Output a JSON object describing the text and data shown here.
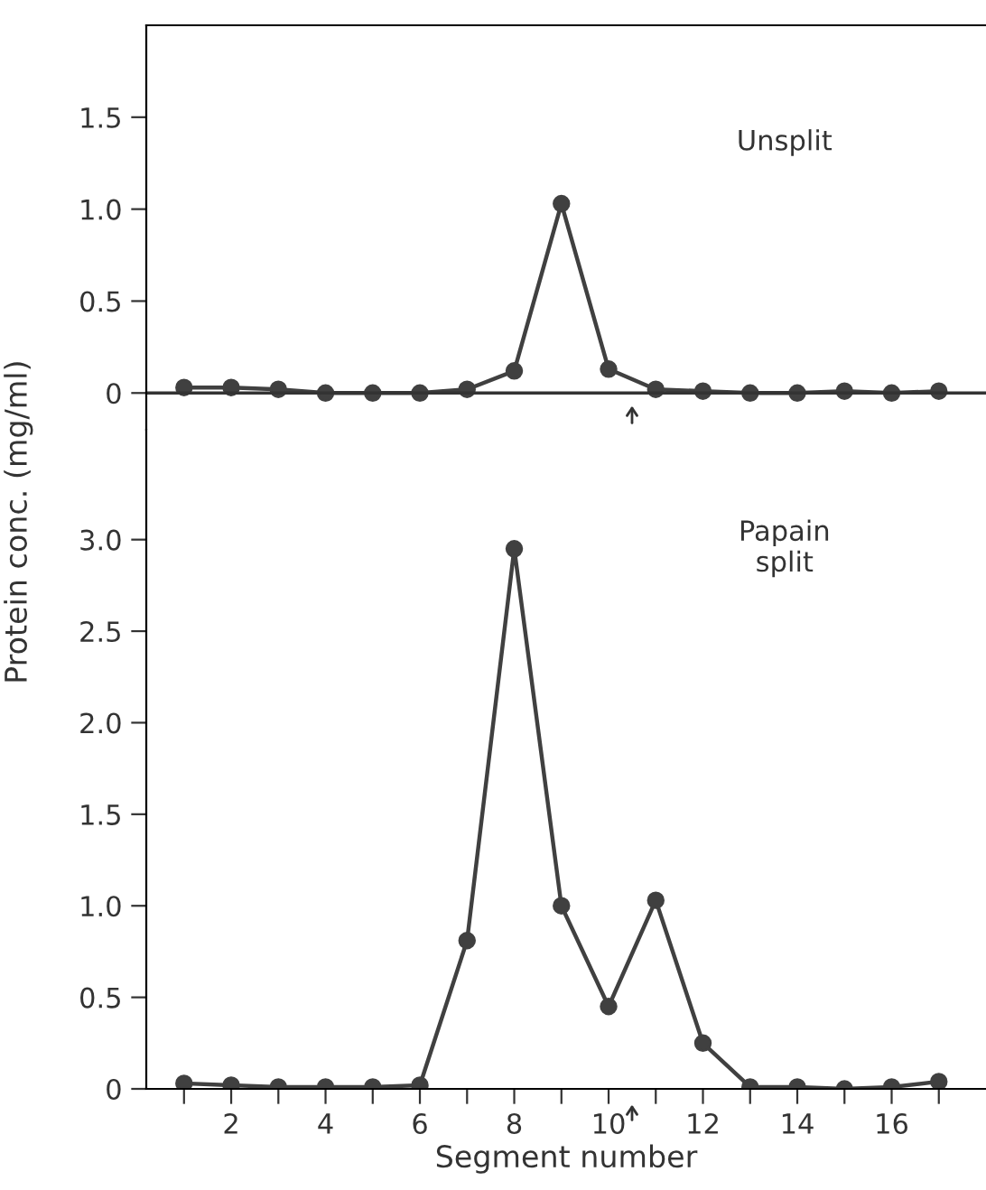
{
  "chart_data": [
    {
      "type": "line",
      "annotations": [
        "Unsplit"
      ],
      "x": [
        1,
        2,
        3,
        4,
        5,
        6,
        7,
        8,
        9,
        10,
        11,
        12,
        13,
        14,
        15,
        16,
        17
      ],
      "series": [
        {
          "color": "#404040",
          "values": [
            0.03,
            0.03,
            0.02,
            0,
            0,
            0,
            0.02,
            0.12,
            1.03,
            0.13,
            0.02,
            0.01,
            0,
            0,
            0.01,
            0,
            0.01
          ]
        }
      ],
      "xlim": [
        0.2,
        18
      ],
      "ylim": [
        -0.2,
        2.0
      ],
      "yticks": [
        0,
        0.5,
        {
          "value": 1.0,
          "label": "1.0"
        },
        1.5
      ],
      "xticks": [
        2,
        4,
        6,
        8,
        10,
        12,
        14,
        16
      ],
      "tick_labels": "y",
      "ref_lines": [
        {
          "axis": "y",
          "value": 0
        }
      ],
      "marker": "circle",
      "line_style": "solid",
      "grid": false
    },
    {
      "type": "line",
      "annotations": [
        "Papain\nsplit"
      ],
      "x": [
        1,
        2,
        3,
        4,
        5,
        6,
        7,
        8,
        9,
        10,
        11,
        12,
        13,
        14,
        15,
        16,
        17
      ],
      "series": [
        {
          "color": "#404040",
          "values": [
            0.03,
            0.02,
            0.01,
            0.01,
            0.01,
            0.02,
            0.81,
            2.95,
            1.0,
            0.45,
            1.03,
            0.25,
            0.01,
            0.01,
            0,
            0.01,
            0.04
          ]
        }
      ],
      "xlabel": "Segment number",
      "ylabel": "Protein conc. (mg/ml)",
      "xlim": [
        0.2,
        18
      ],
      "ylim": [
        0,
        3.6
      ],
      "yticks": [
        0,
        0.5,
        {
          "value": 1.0,
          "label": "1.0"
        },
        1.5,
        {
          "value": 2.0,
          "label": "2.0"
        },
        2.5,
        {
          "value": 3.0,
          "label": "3.0"
        }
      ],
      "xticks": [
        {
          "value": 1,
          "label": null
        },
        2,
        {
          "value": 3,
          "label": null
        },
        4,
        {
          "value": 5,
          "label": null
        },
        6,
        {
          "value": 7,
          "label": null
        },
        8,
        {
          "value": 9,
          "label": null
        },
        10,
        {
          "value": 11,
          "label": null
        },
        12,
        {
          "value": 13,
          "label": null
        },
        14,
        {
          "value": 15,
          "label": null
        },
        16,
        {
          "value": 17,
          "label": null
        }
      ],
      "marker": "circle",
      "line_style": "solid",
      "grid": false
    }
  ]
}
